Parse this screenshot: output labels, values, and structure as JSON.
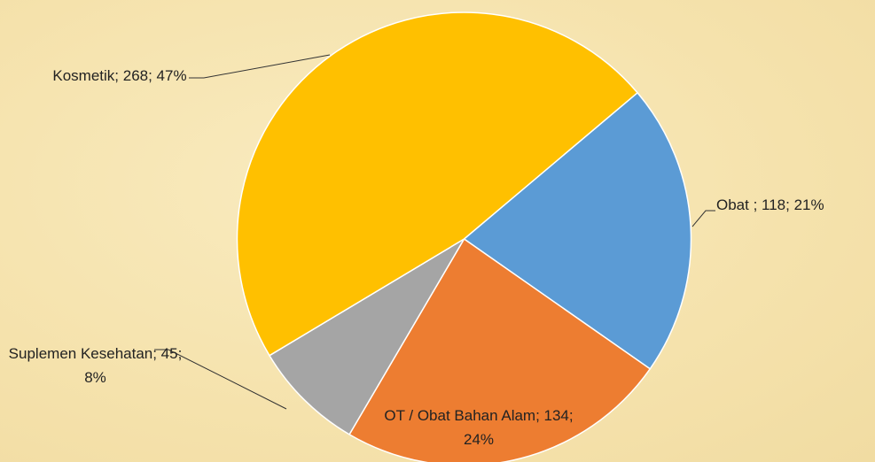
{
  "chart_data": {
    "type": "pie",
    "values": [
      118,
      134,
      45,
      268
    ],
    "value_labels": [
      "Obat ; 118; 21%",
      "OT / Obat Bahan Alam; 134; 24%",
      "Suplemen Kesehatan; 45; 8%",
      "Kosmetik; 268; 47%"
    ],
    "colors": [
      "#5b9bd5",
      "#ed7d31",
      "#a5a5a5",
      "#ffc000"
    ]
  }
}
